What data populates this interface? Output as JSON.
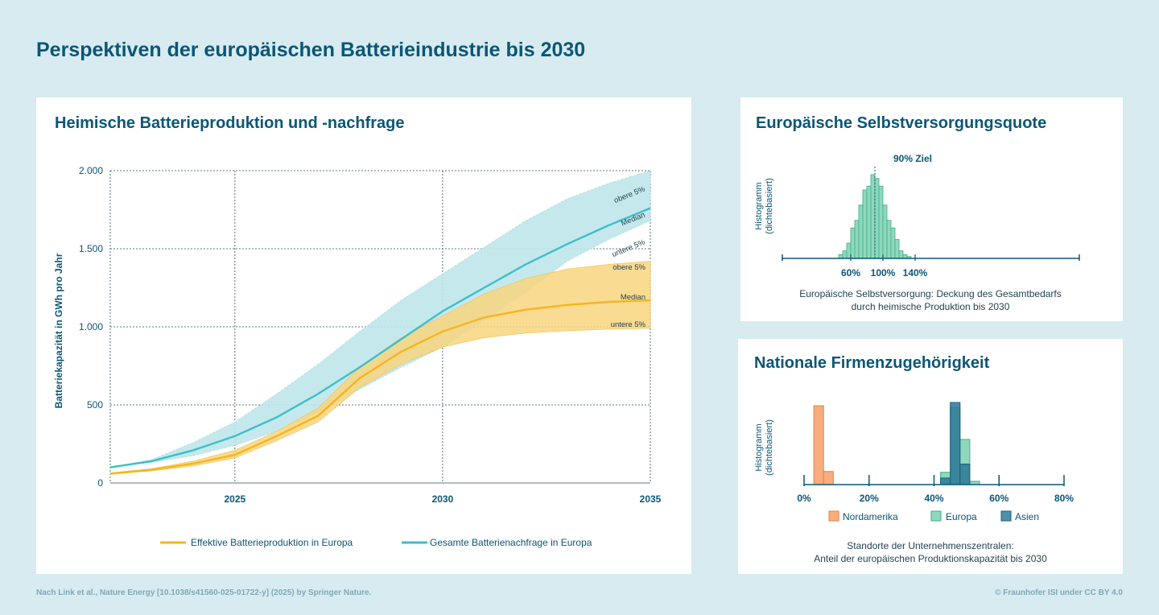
{
  "title": "Perspektiven der europäischen Batterieindustrie bis 2030",
  "footer": {
    "source": "Nach Link et al., Nature Energy [10.1038/s41560-025-01722-y] (2025) by Springer Nature.",
    "copyright": "© Fraunhofer ISI under CC BY 4.0"
  },
  "colors": {
    "production": "#f7b51c",
    "production_band": "#f8d57f",
    "demand": "#3cbfca",
    "demand_band": "#bfe6ea",
    "europa": "#6ccbaa",
    "asien": "#2a7898",
    "nordamerika": "#f7ad7e",
    "text": "#0b5676"
  },
  "chart_data": [
    {
      "type": "area",
      "title": "Heimische Batterieproduktion und -nachfrage",
      "ylabel": "Batteriekapazität in GWh pro Jahr",
      "xlabel": "",
      "xlim": [
        2022,
        2035
      ],
      "ylim": [
        0,
        2000
      ],
      "x_ticks": [
        2025,
        2030,
        2035
      ],
      "x_tick_labels": [
        "2025",
        "2030",
        "2035"
      ],
      "y_ticks": [
        0,
        500,
        1000,
        1500,
        2000
      ],
      "y_tick_labels": [
        "0",
        "500",
        "1.000",
        "1.500",
        "2.000"
      ],
      "grid": true,
      "legend_position": "bottom",
      "series": [
        {
          "name": "Effektive Batterieproduktion in Europa",
          "x": [
            2022,
            2023,
            2024,
            2025,
            2026,
            2027,
            2028,
            2029,
            2030,
            2031,
            2032,
            2033,
            2034,
            2035
          ],
          "median": [
            60,
            85,
            125,
            180,
            300,
            430,
            670,
            840,
            970,
            1060,
            1110,
            1140,
            1160,
            1170
          ],
          "lower": [
            55,
            78,
            110,
            160,
            270,
            390,
            610,
            760,
            870,
            930,
            960,
            975,
            985,
            990
          ],
          "upper": [
            65,
            92,
            140,
            210,
            330,
            480,
            740,
            930,
            1070,
            1210,
            1310,
            1370,
            1400,
            1420
          ],
          "band_labels": [
            "obere 5%",
            "Median",
            "untere 5%"
          ]
        },
        {
          "name": "Gesamte Batterienachfrage in Europa",
          "x": [
            2022,
            2023,
            2024,
            2025,
            2026,
            2027,
            2028,
            2029,
            2030,
            2031,
            2032,
            2033,
            2034,
            2035
          ],
          "median": [
            100,
            140,
            210,
            300,
            420,
            570,
            740,
            920,
            1100,
            1250,
            1400,
            1530,
            1650,
            1760
          ],
          "lower": [
            100,
            130,
            175,
            240,
            330,
            450,
            600,
            740,
            870,
            1040,
            1220,
            1420,
            1560,
            1680
          ],
          "upper": [
            100,
            150,
            260,
            390,
            570,
            760,
            970,
            1170,
            1340,
            1510,
            1680,
            1820,
            1920,
            2000
          ],
          "band_labels": [
            "obere 5%",
            "Median",
            "untere 5%"
          ]
        }
      ]
    },
    {
      "type": "bar",
      "title": "Europäische Selbstversorgungsquote",
      "ylabel": "Histogramm (dichtebasiert)",
      "xlabel": "Europäische Selbstversorgung: Deckung des Gesamtbedarfs durch heimische Produktion bis 2030",
      "x_ticks": [
        "60%",
        "100%",
        "140%"
      ],
      "target_label": "90% Ziel",
      "target_value": 90,
      "bin_width": 5,
      "bin_starts": [
        45,
        50,
        55,
        60,
        65,
        70,
        75,
        80,
        85,
        90,
        95,
        100,
        105,
        110,
        115,
        120,
        125,
        130
      ],
      "values": [
        1,
        2,
        4,
        8,
        10,
        14,
        18,
        19,
        22,
        21,
        19,
        14,
        10,
        8,
        5,
        2,
        1,
        0.5
      ]
    },
    {
      "type": "bar",
      "title": "Nationale Firmenzugehörigkeit",
      "ylabel": "Histogramm (dichtebasiert)",
      "xlabel": "Standorte der Unternehmenszentralen: Anteil der europäischen Produktionskapazität bis 2030",
      "x_ticks": [
        "0%",
        "20%",
        "40%",
        "60%",
        "80%"
      ],
      "bin_width": 3,
      "legend_position": "bottom",
      "series": [
        {
          "name": "Nordamerika",
          "bin_starts": [
            3,
            6
          ],
          "values": [
            9.6,
            1.6
          ]
        },
        {
          "name": "Europa",
          "bin_starts": [
            42,
            45,
            48,
            51
          ],
          "values": [
            1.5,
            9.4,
            5.5,
            0.4
          ]
        },
        {
          "name": "Asien",
          "bin_starts": [
            42,
            45,
            48
          ],
          "values": [
            0.8,
            10,
            2.5
          ]
        }
      ]
    }
  ]
}
